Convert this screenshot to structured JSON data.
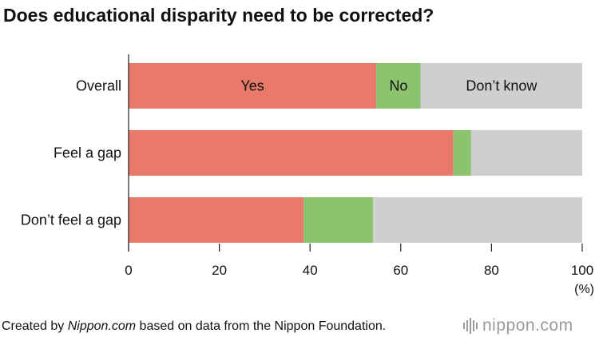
{
  "chart_data": {
    "type": "bar",
    "orientation": "horizontal",
    "stacked": true,
    "title": "Does educational disparity need to be corrected?",
    "categories": [
      "Overall",
      "Feel a gap",
      "Don’t feel a gap"
    ],
    "series": [
      {
        "name": "Yes",
        "color": "#e8796b",
        "values": [
          54.6,
          71.6,
          38.6
        ]
      },
      {
        "name": "No",
        "color": "#8cc36e",
        "values": [
          9.8,
          3.9,
          15.3
        ]
      },
      {
        "name": "Don’t know",
        "color": "#cfcfcf",
        "values": [
          35.6,
          24.5,
          46.1
        ]
      }
    ],
    "xlim": [
      0,
      100
    ],
    "xticks": [
      "0",
      "20",
      "40",
      "60",
      "80",
      "100"
    ],
    "xunit": "(%)",
    "series_labels_on_category": "Overall",
    "grid": false
  },
  "footer": {
    "prefix": "Created by ",
    "site": "Nippon.com",
    "suffix": " based on data from the Nippon Foundation."
  },
  "logo": {
    "text": "nippon.com",
    "icon": "nippon-logo-bars-icon"
  }
}
